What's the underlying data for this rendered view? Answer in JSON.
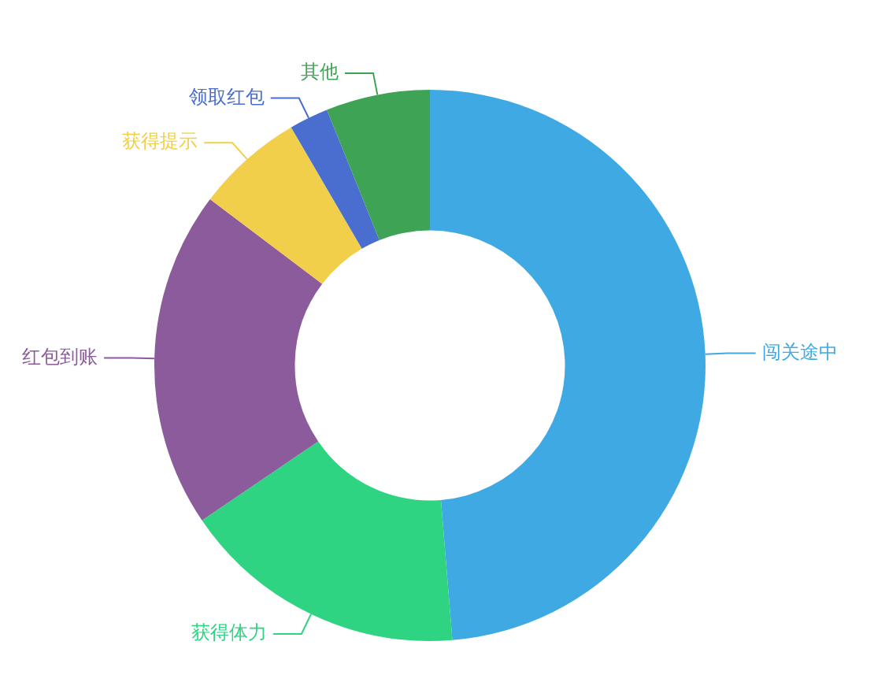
{
  "chart_data": {
    "type": "donut",
    "categories": [
      "闯关途中",
      "获得体力",
      "红包到账",
      "获得提示",
      "领取红包",
      "其他"
    ],
    "values": [
      48.7,
      16.8,
      19.8,
      6.3,
      2.3,
      6.1
    ],
    "colors": [
      "#3fa9e3",
      "#2ed482",
      "#8b5b9c",
      "#f2cf4a",
      "#4a6dd0",
      "#3fa355"
    ],
    "legend": false
  }
}
